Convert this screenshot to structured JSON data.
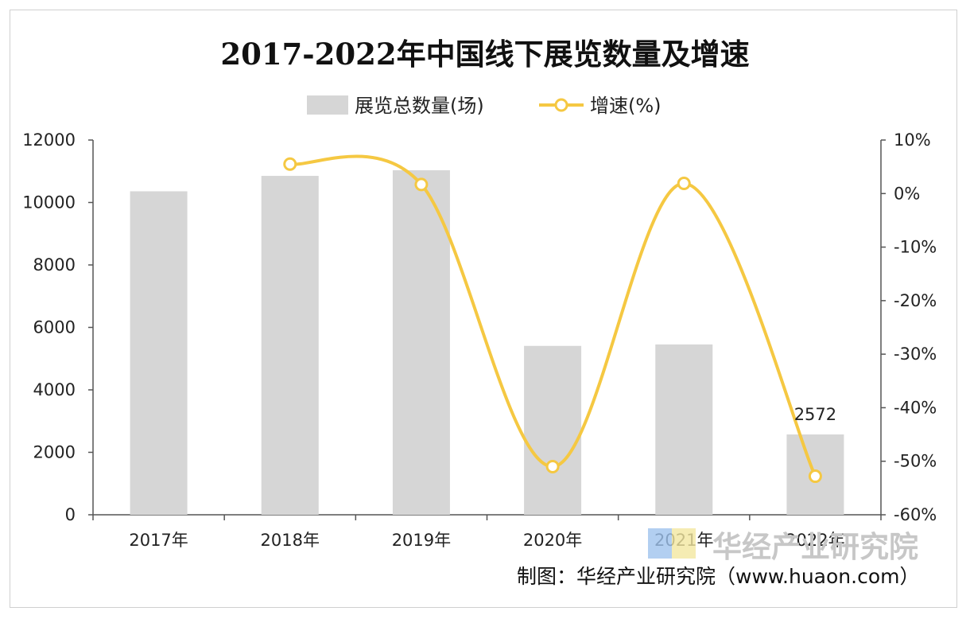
{
  "chart_data": {
    "type": "bar+line",
    "title": "2017-2022年中国线下展览数量及增速",
    "categories": [
      "2017年",
      "2018年",
      "2019年",
      "2020年",
      "2021年",
      "2022年"
    ],
    "series": [
      {
        "name": "展览总数量(场)",
        "type": "bar",
        "axis": "left",
        "values": [
          10358,
          10852,
          11033,
          5408,
          5454,
          2572
        ],
        "color": "#d6d6d6"
      },
      {
        "name": "增速(%)",
        "type": "line",
        "axis": "right",
        "smooth": true,
        "values": [
          null,
          5.5,
          1.7,
          -51.0,
          1.9,
          -52.8
        ],
        "color": "#f5c842"
      }
    ],
    "data_labels": [
      {
        "category": "2022年",
        "text": "2572"
      }
    ],
    "y_left": {
      "min": 0,
      "max": 12000,
      "ticks": [
        "0",
        "2000",
        "4000",
        "6000",
        "8000",
        "10000",
        "12000"
      ]
    },
    "y_right": {
      "min": -60,
      "max": 10,
      "ticks": [
        "-60%",
        "-50%",
        "-40%",
        "-30%",
        "-20%",
        "-10%",
        "0%",
        "10%"
      ]
    },
    "legend_position": "top-center",
    "grid": false
  },
  "legend": {
    "bar_label": "展览总数量(场)",
    "line_label": "增速(%)"
  },
  "watermark": {
    "text": "华经产业研究院"
  },
  "credit": {
    "text": "制图：华经产业研究院（www.huaon.com）"
  }
}
